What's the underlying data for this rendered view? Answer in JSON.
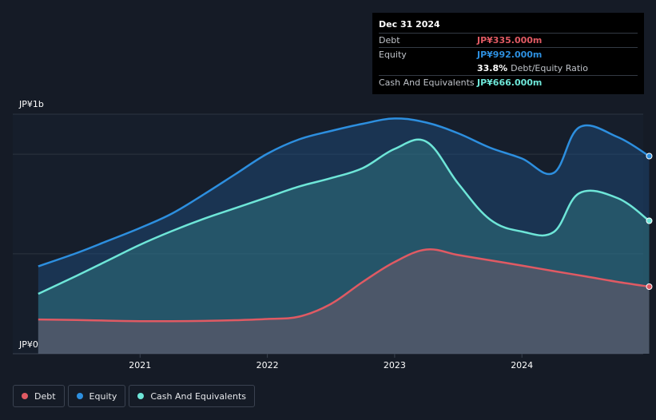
{
  "tooltip": {
    "date": "Dec 31 2024",
    "debt_label": "Debt",
    "debt_value": "JP¥335.000m",
    "equity_label": "Equity",
    "equity_value": "JP¥992.000m",
    "ratio_pct": "33.8%",
    "ratio_label": "Debt/Equity Ratio",
    "cash_label": "Cash And Equivalents",
    "cash_value": "JP¥666.000m"
  },
  "legend": [
    {
      "label": "Debt",
      "color": "#e05a63"
    },
    {
      "label": "Equity",
      "color": "#2d8fdf"
    },
    {
      "label": "Cash And Equivalents",
      "color": "#6ee6d8"
    }
  ],
  "colors": {
    "debt": "#e05a63",
    "equity": "#2d8fdf",
    "cash": "#6ee6d8",
    "background": "#151b26",
    "grid": "#2c3440"
  },
  "chart_data": {
    "type": "area",
    "currency_unit": "JP¥ millions",
    "ylim": [
      0,
      1000
    ],
    "y_tick_labels": [
      {
        "value": 1000,
        "label": "JP¥1b"
      },
      {
        "value": 0,
        "label": "JP¥0"
      }
    ],
    "x_ticks": [
      {
        "value": 2021.0,
        "label": "2021"
      },
      {
        "value": 2022.0,
        "label": "2022"
      },
      {
        "value": 2023.0,
        "label": "2023"
      },
      {
        "value": 2024.0,
        "label": "2024"
      }
    ],
    "xlim": [
      2020.0,
      2025.0
    ],
    "series": [
      {
        "name": "Equity",
        "key": "equity",
        "points": [
          [
            2020.2,
            365
          ],
          [
            2020.5,
            420
          ],
          [
            2020.75,
            472
          ],
          [
            2021.0,
            525
          ],
          [
            2021.25,
            585
          ],
          [
            2021.5,
            665
          ],
          [
            2021.75,
            750
          ],
          [
            2022.0,
            835
          ],
          [
            2022.25,
            895
          ],
          [
            2022.5,
            930
          ],
          [
            2022.75,
            960
          ],
          [
            2023.0,
            982
          ],
          [
            2023.25,
            965
          ],
          [
            2023.5,
            920
          ],
          [
            2023.75,
            860
          ],
          [
            2024.0,
            815
          ],
          [
            2024.25,
            755
          ],
          [
            2024.45,
            945
          ],
          [
            2024.75,
            905
          ],
          [
            2025.0,
            825
          ]
        ]
      },
      {
        "name": "Cash And Equivalents",
        "key": "cash",
        "points": [
          [
            2020.2,
            250
          ],
          [
            2020.5,
            325
          ],
          [
            2020.75,
            390
          ],
          [
            2021.0,
            455
          ],
          [
            2021.25,
            512
          ],
          [
            2021.5,
            563
          ],
          [
            2021.75,
            608
          ],
          [
            2022.0,
            653
          ],
          [
            2022.25,
            698
          ],
          [
            2022.5,
            733
          ],
          [
            2022.75,
            775
          ],
          [
            2023.0,
            855
          ],
          [
            2023.25,
            885
          ],
          [
            2023.5,
            710
          ],
          [
            2023.75,
            560
          ],
          [
            2024.0,
            510
          ],
          [
            2024.25,
            508
          ],
          [
            2024.45,
            670
          ],
          [
            2024.75,
            650
          ],
          [
            2025.0,
            555
          ]
        ]
      },
      {
        "name": "Debt",
        "key": "debt",
        "points": [
          [
            2020.2,
            143
          ],
          [
            2020.5,
            141
          ],
          [
            2020.75,
            138
          ],
          [
            2021.0,
            136
          ],
          [
            2021.25,
            136
          ],
          [
            2021.5,
            137
          ],
          [
            2021.75,
            140
          ],
          [
            2022.0,
            145
          ],
          [
            2022.25,
            155
          ],
          [
            2022.5,
            208
          ],
          [
            2022.75,
            300
          ],
          [
            2023.0,
            383
          ],
          [
            2023.25,
            435
          ],
          [
            2023.5,
            412
          ],
          [
            2023.75,
            390
          ],
          [
            2024.0,
            368
          ],
          [
            2024.25,
            345
          ],
          [
            2024.5,
            323
          ],
          [
            2024.75,
            300
          ],
          [
            2025.0,
            280
          ]
        ]
      }
    ]
  }
}
